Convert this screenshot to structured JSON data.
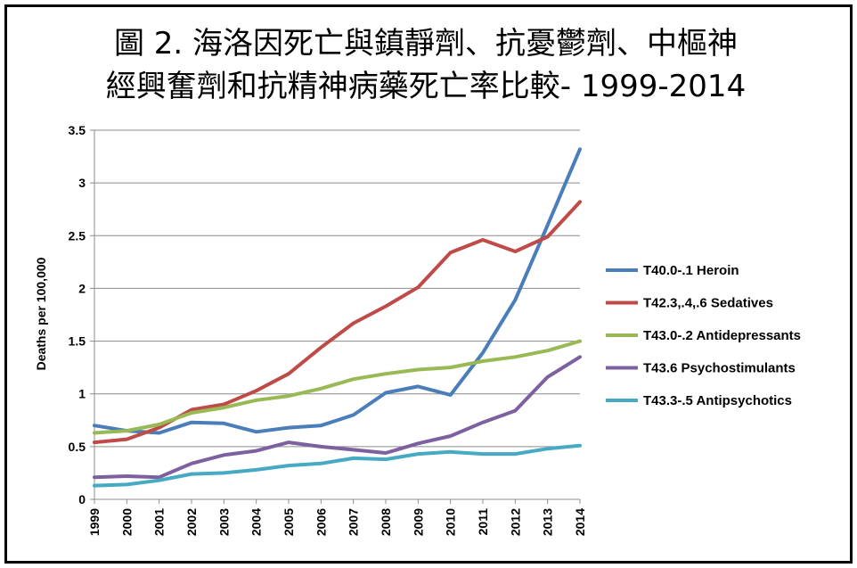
{
  "chart_data": {
    "type": "line",
    "title_line1": "圖 2. 海洛因死亡與鎮靜劑、抗憂鬱劑、中樞神",
    "title_line2": "經興奮劑和抗精神病藥死亡率比較- 1999-2014",
    "xlabel": "",
    "ylabel": "Deaths per 100,000",
    "ylim": [
      0,
      3.5
    ],
    "yticks": [
      "0",
      "0.5",
      "1",
      "1.5",
      "2",
      "2.5",
      "3",
      "3.5"
    ],
    "grid": true,
    "legend_position": "right",
    "x": [
      "1999",
      "2000",
      "2001",
      "2002",
      "2003",
      "2004",
      "2005",
      "2006",
      "2007",
      "2008",
      "2009",
      "2010",
      "2011",
      "2012",
      "2013",
      "2014"
    ],
    "series": [
      {
        "name": "T40.0-.1 Heroin",
        "color": "#4a7ebb",
        "values": [
          0.7,
          0.65,
          0.63,
          0.73,
          0.72,
          0.64,
          0.68,
          0.7,
          0.8,
          1.01,
          1.07,
          0.99,
          1.39,
          1.89,
          2.6,
          3.32
        ]
      },
      {
        "name": "T42.3,.4,.6 Sedatives",
        "color": "#be4b48",
        "values": [
          0.54,
          0.57,
          0.68,
          0.85,
          0.9,
          1.03,
          1.19,
          1.44,
          1.67,
          1.83,
          2.01,
          2.34,
          2.46,
          2.35,
          2.49,
          2.82
        ]
      },
      {
        "name": "T43.0-.2 Antidepressants",
        "color": "#98b954",
        "values": [
          0.63,
          0.65,
          0.71,
          0.82,
          0.87,
          0.94,
          0.98,
          1.05,
          1.14,
          1.19,
          1.23,
          1.25,
          1.31,
          1.35,
          1.41,
          1.5
        ]
      },
      {
        "name": "T43.6 Psychostimulants",
        "color": "#7d60a0",
        "values": [
          0.21,
          0.22,
          0.21,
          0.34,
          0.42,
          0.46,
          0.54,
          0.5,
          0.47,
          0.44,
          0.53,
          0.6,
          0.73,
          0.84,
          1.16,
          1.35
        ]
      },
      {
        "name": "T43.3-.5 Antipsychotics",
        "color": "#46aac5",
        "values": [
          0.13,
          0.14,
          0.18,
          0.24,
          0.25,
          0.28,
          0.32,
          0.34,
          0.39,
          0.38,
          0.43,
          0.45,
          0.43,
          0.43,
          0.48,
          0.51
        ]
      }
    ]
  }
}
